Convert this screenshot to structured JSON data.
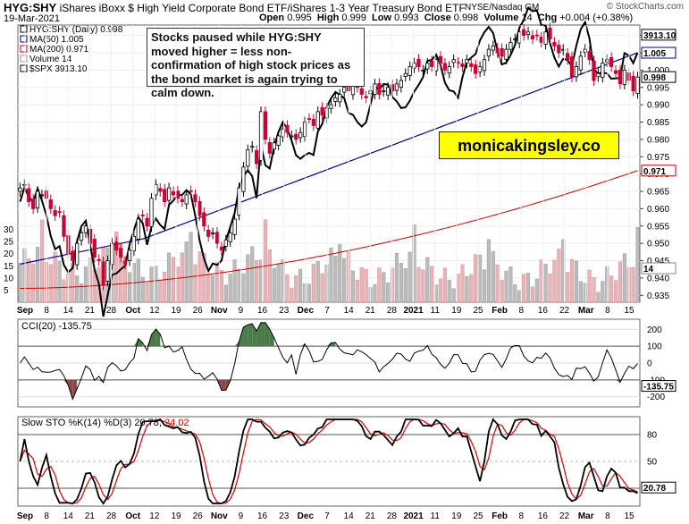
{
  "header": {
    "symbol": "HYG:SHY",
    "description": "iShares iBoxx $ High Yield Corporate Bond ETF/iShares 1-3 Year Treasury Bond ETF",
    "exchange": "NYSE/Nasdaq GM",
    "credit": "© StockCharts.com",
    "date": "19-Mar-2021",
    "open_label": "Open",
    "open": "0.995",
    "high_label": "High",
    "high": "0.999",
    "low_label": "Low",
    "low": "0.993",
    "close_label": "Close",
    "close": "0.998",
    "volume_label": "Volume",
    "volume": "14",
    "chg_label": "Chg",
    "chg": "+0.004 (+0.38%)"
  },
  "annotation": "Stocks paused while HYG:SHY moved higher = less non-confirmation of high stock prices as the bond market is again trying to calm down.",
  "brand": "monicakingsley.co",
  "colors": {
    "up": "#000000",
    "down": "#cc0033",
    "ma50": "#00008b",
    "ma200": "#cc0000",
    "spx": "#000000",
    "cci_fill_pos": "#4a7a4a",
    "cci_fill_neg": "#8b4a4a",
    "sto_k": "#000000",
    "sto_d": "#dd0000",
    "vol_up": "#bbbbbb",
    "vol_down": "#e8b4b8"
  },
  "chart_data": [
    {
      "type": "candlestick",
      "panel": "price",
      "legend": [
        "HYG:SHY (Daily) 0.998",
        "MA(50) 1.005",
        "MA(200) 0.971",
        "Volume 14",
        "$SPX 3913.10"
      ],
      "x_labels": [
        "Sep",
        "8",
        "14",
        "21",
        "28",
        "Oct",
        "12",
        "19",
        "26",
        "Nov",
        "9",
        "16",
        "23",
        "Dec",
        "7",
        "14",
        "21",
        "28",
        "2021",
        "11",
        "19",
        "25",
        "Feb",
        "8",
        "16",
        "22",
        "Mar",
        "8",
        "15"
      ],
      "y_ticks": [
        0.935,
        0.94,
        0.945,
        0.95,
        0.955,
        0.96,
        0.965,
        0.97,
        0.975,
        0.98,
        0.985,
        0.99,
        0.995,
        1.0,
        1.005,
        1.01
      ],
      "y_tick_labels": [
        "0.935",
        "0.940",
        "0.945",
        "0.950",
        "0.955",
        "0.960",
        "0.965",
        "0.970",
        "0.975",
        "0.980",
        "0.985",
        "0.990",
        "0.995",
        "1.000",
        "1.005",
        "1.010"
      ],
      "ylim": [
        0.933,
        1.013
      ],
      "close": [
        0.966,
        0.967,
        0.962,
        0.96,
        0.965,
        0.964,
        0.963,
        0.96,
        0.958,
        0.959,
        0.952,
        0.947,
        0.945,
        0.95,
        0.953,
        0.955,
        0.95,
        0.946,
        0.945,
        0.938,
        0.945,
        0.95,
        0.948,
        0.946,
        0.944,
        0.948,
        0.952,
        0.957,
        0.958,
        0.955,
        0.963,
        0.967,
        0.965,
        0.962,
        0.966,
        0.964,
        0.963,
        0.962,
        0.964,
        0.965,
        0.962,
        0.958,
        0.955,
        0.952,
        0.953,
        0.95,
        0.948,
        0.951,
        0.953,
        0.957,
        0.966,
        0.972,
        0.977,
        0.978,
        0.973,
        0.988,
        0.98,
        0.976,
        0.979,
        0.981,
        0.983,
        0.982,
        0.981,
        0.98,
        0.982,
        0.985,
        0.986,
        0.984,
        0.988,
        0.987,
        0.989,
        0.99,
        0.992,
        0.993,
        0.995,
        0.994,
        0.996,
        0.995,
        0.993,
        0.992,
        0.994,
        0.996,
        0.993,
        0.994,
        0.995,
        0.994,
        0.996,
        0.997,
        0.999,
        1.001,
        1.002,
        1.001,
        1.0,
        1.002,
        1.001,
        1.003,
        1.002,
        1.0,
        1.001,
        1.003,
        1.002,
        1.001,
        1.003,
        1.001,
        0.999,
        1.001,
        1.003,
        1.006,
        1.007,
        1.005,
        1.004,
        1.006,
        1.008,
        1.009,
        1.011,
        1.01,
        1.011,
        1.009,
        1.01,
        1.008,
        1.011,
        1.009,
        1.007,
        1.005,
        1.006,
        1.003,
        0.998,
        1.001,
        1.004,
        1.006,
        1.003,
        0.997,
        0.999,
        1.002,
        1.003,
        1.001,
        0.999,
        0.996,
        1.0,
        0.997,
        0.994,
        0.998
      ],
      "ma50_first": 0.944,
      "ma50_last": 1.005,
      "ma200_first": 0.937,
      "ma200_last": 0.971,
      "spx_label": "3913.10",
      "hygshy_label": "0.998",
      "ma50_label": "1.005",
      "ma200_label": "0.971"
    },
    {
      "type": "bar",
      "panel": "volume",
      "y_ticks": [
        5,
        10,
        15,
        20,
        25,
        30
      ],
      "y_tick_labels": [
        "5",
        "10",
        "15",
        "20",
        "25",
        "30"
      ],
      "ylim": [
        0,
        35
      ],
      "last_label": "14"
    },
    {
      "type": "line",
      "panel": "cci",
      "title": "CCI(20) -135.75",
      "y_ticks": [
        200,
        100,
        0,
        -100,
        -200
      ],
      "y_tick_labels": [
        "200",
        "100",
        "0",
        "-100",
        "-200"
      ],
      "ylim": [
        -260,
        260
      ],
      "last_label": "-135.75"
    },
    {
      "type": "line",
      "panel": "stochastic",
      "title": "Slow STO %K(14) %D(3) 20.78, 24.02",
      "title_value_k": "20.78",
      "title_value_d": "24.02",
      "y_ticks": [
        80,
        50,
        20
      ],
      "y_tick_labels": [
        "80",
        "50",
        "20"
      ],
      "ylim": [
        0,
        100
      ],
      "last_label": "20.78"
    }
  ]
}
